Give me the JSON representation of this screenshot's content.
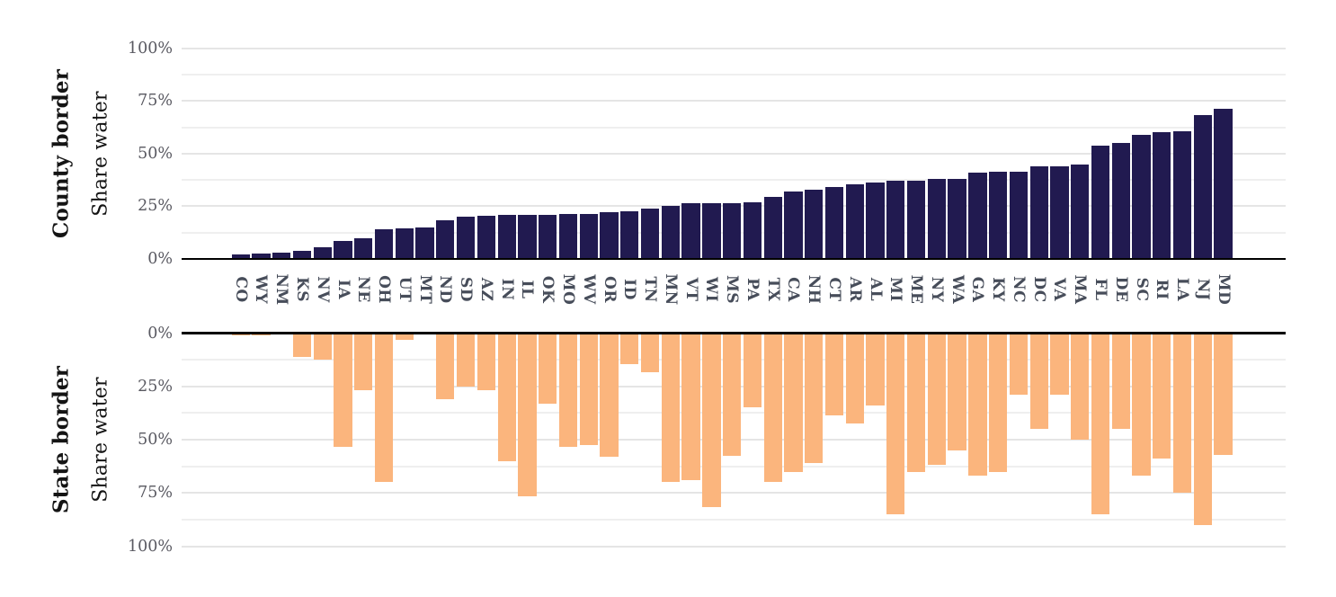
{
  "chart_data": {
    "type": "bar",
    "title": "",
    "categories": [
      "CO",
      "WY",
      "NM",
      "KS",
      "NV",
      "IA",
      "NE",
      "OH",
      "UT",
      "MT",
      "ND",
      "SD",
      "AZ",
      "IN",
      "IL",
      "OK",
      "MO",
      "WV",
      "OR",
      "ID",
      "TN",
      "MN",
      "VT",
      "WI",
      "MS",
      "PA",
      "TX",
      "CA",
      "NH",
      "CT",
      "AR",
      "AL",
      "MI",
      "ME",
      "NY",
      "WA",
      "GA",
      "KY",
      "NC",
      "DC",
      "VA",
      "MA",
      "FL",
      "DE",
      "SC",
      "RI",
      "LA",
      "NJ",
      "MD"
    ],
    "series": [
      {
        "name": "County border share water",
        "values": [
          2,
          2.5,
          3,
          4,
          5.5,
          8.5,
          10,
          14,
          14.5,
          15,
          18.5,
          20,
          20.5,
          21,
          21,
          21,
          21.5,
          21.5,
          22,
          22.5,
          24,
          25,
          26.5,
          26.5,
          26.5,
          27,
          29.5,
          32,
          33,
          34,
          35.5,
          36.5,
          37,
          37,
          38,
          38,
          41,
          41.5,
          41.5,
          44,
          44,
          45,
          54,
          55,
          59,
          60,
          60.5,
          68.5,
          71.5
        ]
      },
      {
        "name": "State border share water",
        "values": [
          1,
          1,
          0,
          11,
          12.5,
          53.5,
          27,
          70,
          3,
          0,
          31,
          25,
          27,
          60,
          76.5,
          33,
          53.5,
          52.5,
          58,
          14.5,
          18.5,
          70,
          69,
          81.5,
          57.5,
          35,
          70,
          65,
          61,
          38.5,
          42.5,
          34,
          85,
          65,
          62,
          55,
          67,
          65,
          29,
          45,
          29,
          50,
          85,
          45,
          67,
          59,
          75,
          90,
          57
        ]
      }
    ],
    "panels": [
      {
        "row_label_bold": "County border",
        "axis_label": "Share water",
        "direction": "up",
        "yticks": [
          {
            "label": "100%",
            "pct": 100
          },
          {
            "label": "75%",
            "pct": 75
          },
          {
            "label": "50%",
            "pct": 50
          },
          {
            "label": "25%",
            "pct": 25
          },
          {
            "label": "0%",
            "pct": 0
          }
        ]
      },
      {
        "row_label_bold": "State border",
        "axis_label": "Share water",
        "direction": "down",
        "yticks": [
          {
            "label": "0%",
            "pct": 0
          },
          {
            "label": "25%",
            "pct": 25
          },
          {
            "label": "50%",
            "pct": 50
          },
          {
            "label": "75%",
            "pct": 75
          },
          {
            "label": "100%",
            "pct": 100
          }
        ]
      }
    ],
    "ylim": [
      0,
      100
    ],
    "grid": true,
    "grid_step_pct": 12.5,
    "legend_position": "none"
  },
  "colors": {
    "county_bar": "#211a50",
    "state_bar": "#fbb57d",
    "grid_major": "#e5e5e5",
    "grid_minor": "#efefef",
    "axis_line": "#000000",
    "ytick_text": "#595961",
    "xtick_text": "#474d5a",
    "row_label_text": "#141414",
    "background": "#ffffff"
  }
}
